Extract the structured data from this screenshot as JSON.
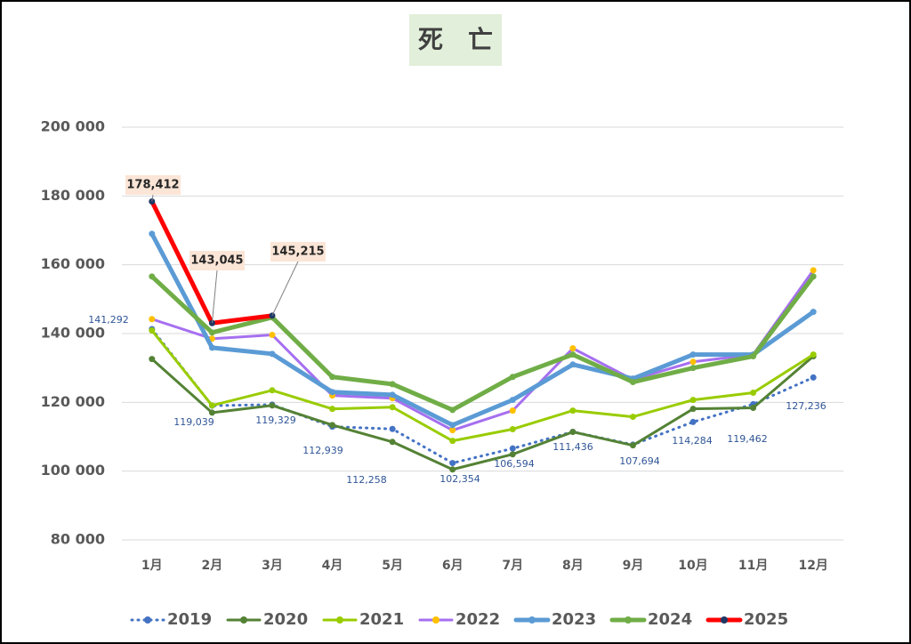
{
  "chart_data": {
    "type": "line",
    "title": "死　亡",
    "categories": [
      "1月",
      "2月",
      "3月",
      "4月",
      "5月",
      "6月",
      "7月",
      "8月",
      "9月",
      "10月",
      "11月",
      "12月"
    ],
    "ylim": [
      80000,
      200000
    ],
    "yticks": [
      {
        "value": 80000,
        "label": "80 000"
      },
      {
        "value": 100000,
        "label": "100 000"
      },
      {
        "value": 120000,
        "label": "120 000"
      },
      {
        "value": 140000,
        "label": "140 000"
      },
      {
        "value": 160000,
        "label": "160 000"
      },
      {
        "value": 180000,
        "label": "180 000"
      },
      {
        "value": 200000,
        "label": "200 000"
      }
    ],
    "grid": true,
    "legend": "bottom",
    "series": [
      {
        "name": "2019",
        "color": "#4472c4",
        "marker_color": "#4472c4",
        "dashed": true,
        "values": [
          141292,
          119039,
          119329,
          112939,
          112258,
          102354,
          106594,
          111436,
          107694,
          114284,
          119462,
          127236
        ],
        "value_labels": [
          "141,292",
          "119,039",
          "119,329",
          "112,939",
          "112,258",
          "102,354",
          "106,594",
          "111,436",
          "107,694",
          "114,284",
          "119,462",
          "127,236"
        ]
      },
      {
        "name": "2020",
        "color": "#548235",
        "marker_color": "#548235",
        "values": [
          132600,
          117000,
          119100,
          113400,
          108500,
          100500,
          104900,
          111400,
          107500,
          118100,
          118400,
          133400
        ]
      },
      {
        "name": "2021",
        "color": "#99cc00",
        "marker_color": "#99cc00",
        "values": [
          140900,
          119100,
          123500,
          118100,
          118600,
          108800,
          112200,
          117600,
          115800,
          120700,
          122800,
          133900
        ]
      },
      {
        "name": "2022",
        "color": "#a66ff0",
        "marker_color": "#ffc000",
        "values": [
          144200,
          138500,
          139600,
          122000,
          121200,
          111900,
          117600,
          135700,
          126600,
          131800,
          133900,
          158400
        ]
      },
      {
        "name": "2023",
        "color": "#5b9bd5",
        "marker_color": "#5b9bd5",
        "thick": true,
        "values": [
          169000,
          135900,
          134100,
          123000,
          122200,
          113400,
          120700,
          131000,
          126900,
          133900,
          133900,
          146300
        ]
      },
      {
        "name": "2024",
        "color": "#70ad47",
        "marker_color": "#70ad47",
        "thick": true,
        "values": [
          156600,
          140300,
          144700,
          127400,
          125300,
          117800,
          127400,
          133900,
          125900,
          130000,
          133400,
          156600
        ]
      },
      {
        "name": "2025",
        "color": "#ff0000",
        "marker_color": "#1f3864",
        "thick": true,
        "values": [
          178412,
          143045,
          145215,
          null,
          null,
          null,
          null,
          null,
          null,
          null,
          null,
          null
        ],
        "value_labels": [
          "178,412",
          "143,045",
          "145,215",
          null,
          null,
          null,
          null,
          null,
          null,
          null,
          null,
          null
        ]
      }
    ]
  }
}
